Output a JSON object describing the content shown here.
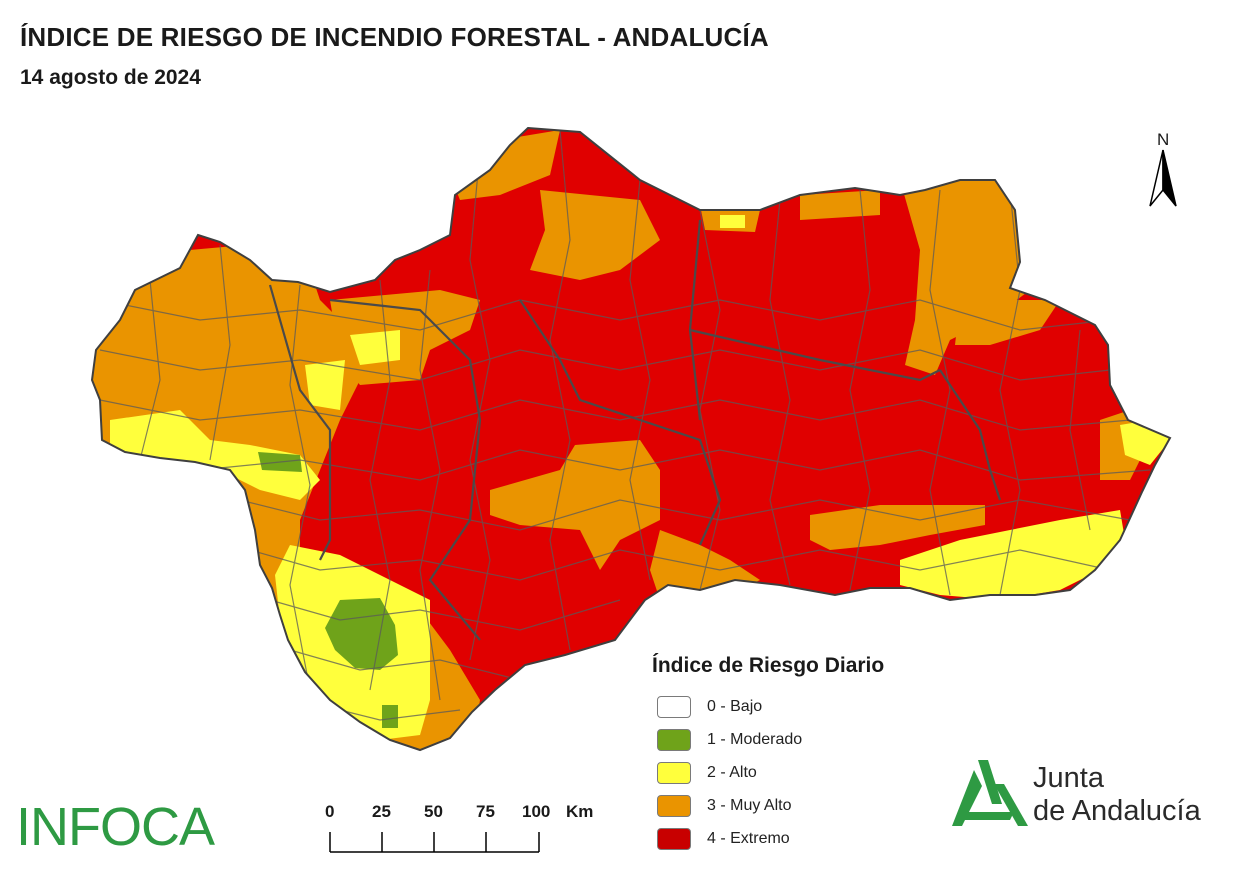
{
  "header": {
    "title": "ÍNDICE DE RIESGO DE INCENDIO FORESTAL - ANDALUCÍA",
    "date": "14 agosto de 2024"
  },
  "north_arrow": {
    "label": "N"
  },
  "legend": {
    "title": "Índice de Riesgo Diario",
    "items": [
      {
        "label": "0 - Bajo",
        "color": "#ffffff"
      },
      {
        "label": "1 - Moderado",
        "color": "#6fa31a"
      },
      {
        "label": "2 - Alto",
        "color": "#ffff3c"
      },
      {
        "label": "3 - Muy Alto",
        "color": "#ea9400"
      },
      {
        "label": "4 - Extremo",
        "color": "#e00000"
      }
    ]
  },
  "scale_bar": {
    "ticks": [
      "0",
      "25",
      "50",
      "75",
      "100"
    ],
    "unit": "Km"
  },
  "logos": {
    "infoca": "INFOCA",
    "junta_line1": "Junta",
    "junta_line2": "de Andalucía",
    "junta_color": "#2e9a43"
  },
  "map_colors": {
    "extreme": "#e00000",
    "very_high": "#ea9400",
    "high": "#ffff3c",
    "moderate": "#6fa31a",
    "border": "#5a5a5a"
  }
}
